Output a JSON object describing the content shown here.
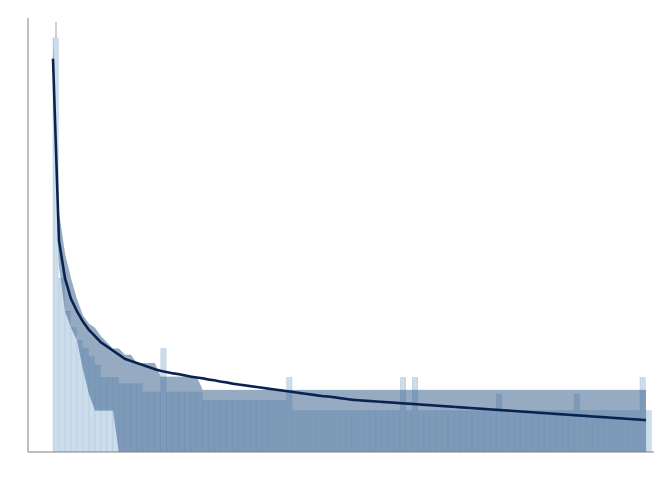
{
  "chart_data": {
    "type": "bar",
    "title": "",
    "xlabel": "",
    "ylabel": "",
    "grid": false,
    "legend": "none",
    "xlim": [
      0,
      100
    ],
    "ylim": [
      0,
      100
    ],
    "histogram": {
      "name": "",
      "bin_width": 1,
      "x": [
        0,
        1,
        2,
        3,
        4,
        5,
        6,
        7,
        8,
        9,
        10,
        11,
        12,
        13,
        14,
        15,
        16,
        17,
        18,
        19,
        20,
        21,
        22,
        23,
        24,
        25,
        26,
        27,
        28,
        29,
        30,
        31,
        32,
        33,
        34,
        35,
        36,
        37,
        38,
        39,
        40,
        41,
        42,
        43,
        44,
        45,
        46,
        47,
        48,
        49,
        50,
        51,
        52,
        53,
        54,
        55,
        56,
        57,
        58,
        59,
        60,
        61,
        62,
        63,
        64,
        65,
        66,
        67,
        68,
        69,
        70,
        71,
        72,
        73,
        74,
        75,
        76,
        77,
        78,
        79,
        80,
        81,
        82,
        83,
        84,
        85,
        86,
        87,
        88,
        89,
        90,
        91,
        92,
        93,
        94,
        95,
        96,
        97,
        98,
        99
      ],
      "values": [
        100,
        42,
        34,
        30,
        27,
        25,
        23,
        21,
        18,
        18,
        18,
        16.5,
        16.5,
        16.5,
        16.5,
        14.5,
        14.5,
        14.5,
        25,
        14.5,
        14.5,
        14.5,
        14.5,
        14.5,
        14.5,
        12.5,
        12.5,
        12.5,
        12.5,
        12.5,
        12.5,
        12.5,
        12.5,
        12.5,
        12.5,
        12.5,
        12.5,
        12.5,
        12.5,
        18,
        10,
        10,
        10,
        10,
        10,
        10,
        10,
        10,
        10,
        10,
        10,
        10,
        10,
        10,
        10,
        10,
        10,
        10,
        18,
        10,
        18,
        10,
        10,
        10,
        10,
        10,
        10,
        10,
        10,
        10,
        10,
        10,
        10,
        10,
        14,
        10,
        10,
        10,
        10,
        10,
        10,
        10,
        10,
        10,
        10,
        10,
        10,
        14,
        10,
        10,
        10,
        10,
        10,
        10,
        10,
        10,
        10,
        10,
        18,
        10
      ]
    },
    "mean_line": {
      "name": "",
      "x": [
        0,
        1,
        2,
        3,
        4,
        5,
        6,
        7,
        8,
        9,
        10,
        11,
        12,
        13,
        14,
        15,
        16,
        17,
        18,
        19,
        20,
        21,
        22,
        23,
        24,
        25,
        26,
        27,
        28,
        29,
        30,
        31,
        32,
        33,
        34,
        35,
        36,
        37,
        38,
        39,
        40,
        41,
        42,
        43,
        44,
        45,
        46,
        47,
        48,
        49,
        50,
        51,
        52,
        53,
        54,
        55,
        56,
        57,
        58,
        59,
        60,
        61,
        62,
        63,
        64,
        65,
        66,
        67,
        68,
        69,
        70,
        71,
        72,
        73,
        74,
        75,
        76,
        77,
        78,
        79,
        80,
        81,
        82,
        83,
        84,
        85,
        86,
        87,
        88,
        89,
        90,
        91,
        92,
        93,
        94,
        95,
        96,
        97,
        98,
        99
      ],
      "y": [
        95,
        51,
        42,
        37,
        34,
        31.5,
        29.5,
        28,
        26.5,
        25.5,
        24.5,
        23.5,
        22.5,
        22,
        21.5,
        21,
        20.5,
        20,
        19.6,
        19.3,
        19,
        18.8,
        18.5,
        18.2,
        18,
        17.8,
        17.5,
        17.3,
        17,
        16.8,
        16.5,
        16.3,
        16.1,
        15.9,
        15.7,
        15.5,
        15.3,
        15.1,
        14.9,
        14.7,
        14.5,
        14.3,
        14.1,
        13.9,
        13.7,
        13.5,
        13.4,
        13.2,
        13,
        12.8,
        12.6,
        12.5,
        12.4,
        12.3,
        12.2,
        12.1,
        12,
        11.9,
        11.8,
        11.7,
        11.6,
        11.5,
        11.4,
        11.3,
        11.2,
        11.1,
        11,
        10.9,
        10.8,
        10.7,
        10.6,
        10.5,
        10.4,
        10.3,
        10.2,
        10.1,
        10,
        9.9,
        9.8,
        9.7,
        9.6,
        9.5,
        9.4,
        9.3,
        9.2,
        9.1,
        9,
        8.9,
        8.8,
        8.7,
        8.6,
        8.5,
        8.4,
        8.3,
        8.2,
        8.1,
        8,
        7.9,
        7.8,
        7.7
      ]
    },
    "confidence_band": {
      "name": "",
      "x": [
        0,
        1,
        2,
        3,
        4,
        5,
        6,
        7,
        8,
        9,
        10,
        11,
        12,
        13,
        14,
        15,
        16,
        17,
        18,
        19,
        20,
        21,
        22,
        23,
        24,
        25,
        26,
        27,
        28,
        29,
        30,
        31,
        32,
        33,
        34,
        35,
        36,
        37,
        38,
        39,
        40,
        41,
        42,
        43,
        44,
        45,
        46,
        47,
        48,
        49,
        50,
        51,
        52,
        53,
        54,
        55,
        56,
        57,
        58,
        59,
        60,
        61,
        62,
        63,
        64,
        65,
        66,
        67,
        68,
        69,
        70,
        71,
        72,
        73,
        74,
        75,
        76,
        77,
        78,
        79,
        80,
        81,
        82,
        83,
        84,
        85,
        86,
        87,
        88,
        89,
        90,
        91,
        92,
        93,
        94,
        95,
        96,
        97,
        98,
        99
      ],
      "lower": [
        88,
        45,
        34,
        30,
        27,
        20,
        14,
        10,
        10,
        10,
        10,
        0,
        0,
        0,
        0,
        0,
        0,
        0,
        0,
        0,
        0,
        0,
        0,
        0,
        0,
        0,
        0,
        0,
        0,
        0,
        0,
        0,
        0,
        0,
        0,
        0,
        0,
        0,
        0,
        0,
        0,
        0,
        0,
        0,
        0,
        0,
        0,
        0,
        0,
        0,
        0,
        0,
        0,
        0,
        0,
        0,
        0,
        0,
        0,
        0,
        0,
        0,
        0,
        0,
        0,
        0,
        0,
        0,
        0,
        0,
        0,
        0,
        0,
        0,
        0,
        0,
        0,
        0,
        0,
        0,
        0,
        0,
        0,
        0,
        0,
        0,
        0,
        0,
        0,
        0,
        0,
        0,
        0,
        0,
        0,
        0,
        0,
        0,
        0,
        0
      ],
      "upper": [
        100,
        58,
        48,
        42,
        37,
        33,
        31,
        30,
        28,
        26.5,
        25,
        25,
        23.5,
        23.5,
        21.5,
        21.5,
        21.5,
        21.5,
        18.2,
        18.2,
        18.2,
        18.2,
        18.2,
        18.2,
        18.2,
        15,
        15,
        15,
        15,
        15,
        15,
        15,
        15,
        15,
        15,
        15,
        15,
        15,
        15,
        15,
        15,
        15,
        15,
        15,
        15,
        15,
        15,
        15,
        15,
        15,
        15,
        15,
        15,
        15,
        15,
        15,
        15,
        15,
        15,
        15,
        15,
        15,
        15,
        15,
        15,
        15,
        15,
        15,
        15,
        15,
        15,
        15,
        15,
        15,
        15,
        15,
        15,
        15,
        15,
        15,
        15,
        15,
        15,
        15,
        15,
        15,
        15,
        15,
        15,
        15,
        15,
        15,
        15,
        15,
        15,
        15,
        15,
        15,
        15,
        15
      ]
    },
    "colors": {
      "histogram": "#b9d0e3",
      "band": "#3f648f",
      "line": "#0b2250",
      "axis": "#7f7f7f"
    }
  }
}
